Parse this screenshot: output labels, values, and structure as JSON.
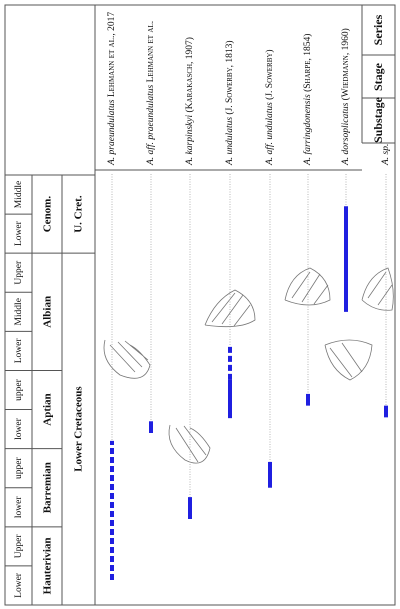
{
  "header": {
    "labels": [
      "Series",
      "Stage",
      "Substage"
    ]
  },
  "chart_data": {
    "type": "range",
    "periods": [
      {
        "name": "Lower Cretaceous",
        "stages": [
          {
            "name": "Hauterivian",
            "substages": [
              "Lower",
              "Upper"
            ]
          },
          {
            "name": "Barremian",
            "substages": [
              "lower",
              "upper"
            ]
          },
          {
            "name": "Aptian",
            "substages": [
              "lower",
              "upper"
            ]
          },
          {
            "name": "Albian",
            "substages": [
              "Lower",
              "Middle",
              "Upper"
            ]
          }
        ]
      },
      {
        "name": "U. Cret.",
        "stages": [
          {
            "name": "Cenom.",
            "substages": [
              "Lower",
              "Middle"
            ]
          }
        ]
      }
    ],
    "ylim": [
      0,
      11
    ],
    "color": "#1f1fe0",
    "species": [
      {
        "taxon": "A. praeundulatus",
        "author": "Lehmann et al., 2017",
        "dashed": [
          0.64,
          4.2
        ]
      },
      {
        "taxon": "A. aff. praeundulatus",
        "author": "Lehmann et al.",
        "solid": [
          4.4,
          4.7
        ]
      },
      {
        "taxon": "A. karpinskyi",
        "author": "(Karakasch, 1907)",
        "solid": [
          2.2,
          2.76
        ]
      },
      {
        "taxon": "A. undulatus",
        "author": "(J. Sowerby, 1813)",
        "solid": [
          4.78,
          5.76
        ],
        "dashed": [
          5.76,
          6.65
        ]
      },
      {
        "taxon": "A. aff. undulatus",
        "author": "(J. Sowerby)",
        "solid": [
          3.0,
          3.66
        ]
      },
      {
        "taxon": "A. farringdonensis",
        "author": "(Sharpe, 1854)",
        "solid": [
          5.1,
          5.4
        ]
      },
      {
        "taxon": "A. dorsoplicatus",
        "author": "(Wiedmann, 1960)",
        "solid": [
          7.5,
          10.2
        ]
      },
      {
        "taxon": "A. sp.",
        "solid": [
          4.8,
          5.1
        ]
      }
    ]
  }
}
